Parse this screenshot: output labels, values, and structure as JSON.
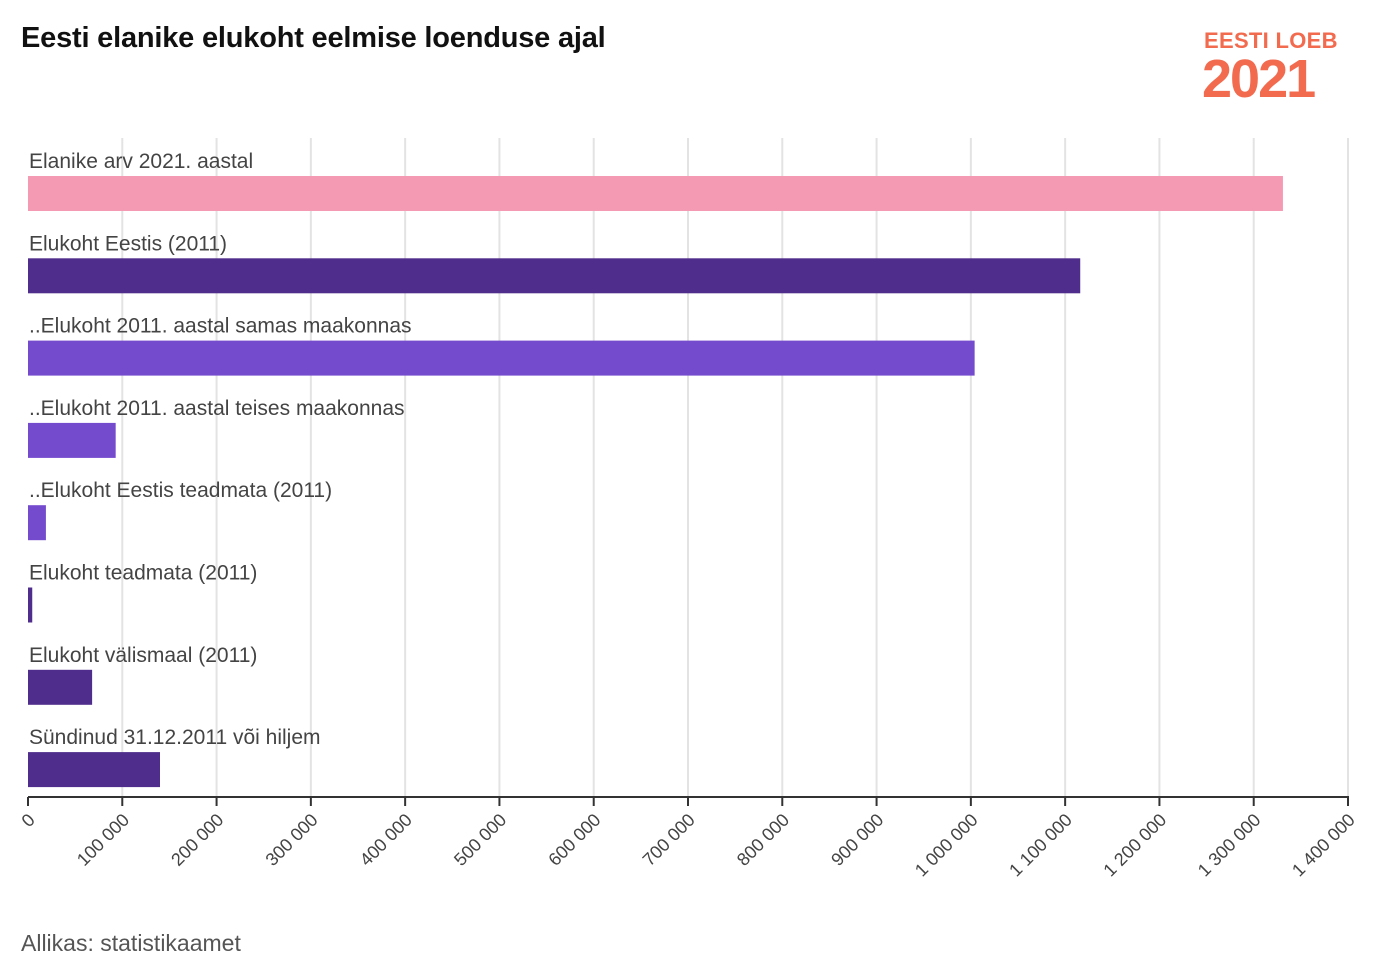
{
  "logo": {
    "text": "EESTI LOEB",
    "year": "2021"
  },
  "source": "Allikas: statistikaamet",
  "chart_data": {
    "type": "bar",
    "orientation": "horizontal",
    "title": "Eesti elanike elukoht eelmise loenduse ajal",
    "xlabel": "",
    "ylabel": "",
    "xlim": [
      0,
      1400000
    ],
    "grid": true,
    "categories": [
      "Elanike arv 2021. aastal",
      "Elukoht Eestis (2011)",
      "..Elukoht 2011. aastal samas maakonnas",
      "..Elukoht 2011. aastal teises maakonnas",
      "..Elukoht Eestis teadmata (2011)",
      "Elukoht teadmata (2011)",
      "Elukoht välismaal (2011)",
      "Sündinud 31.12.2011 või hiljem"
    ],
    "values": [
      1331000,
      1116000,
      1004000,
      93000,
      19000,
      4500,
      68000,
      140000
    ],
    "colors": [
      "#f59ab3",
      "#4f2d8c",
      "#754bce",
      "#754bce",
      "#754bce",
      "#4f2d8c",
      "#4f2d8c",
      "#4f2d8c"
    ],
    "ticks": [
      0,
      100000,
      200000,
      300000,
      400000,
      500000,
      600000,
      700000,
      800000,
      900000,
      1000000,
      1100000,
      1200000,
      1300000,
      1400000
    ],
    "tick_labels": [
      "0",
      "100 000",
      "200 000",
      "300 000",
      "400 000",
      "500 000",
      "600 000",
      "700 000",
      "800 000",
      "900 000",
      "1 000 000",
      "1 100 000",
      "1 200 000",
      "1 300 000",
      "1 400 000"
    ]
  }
}
